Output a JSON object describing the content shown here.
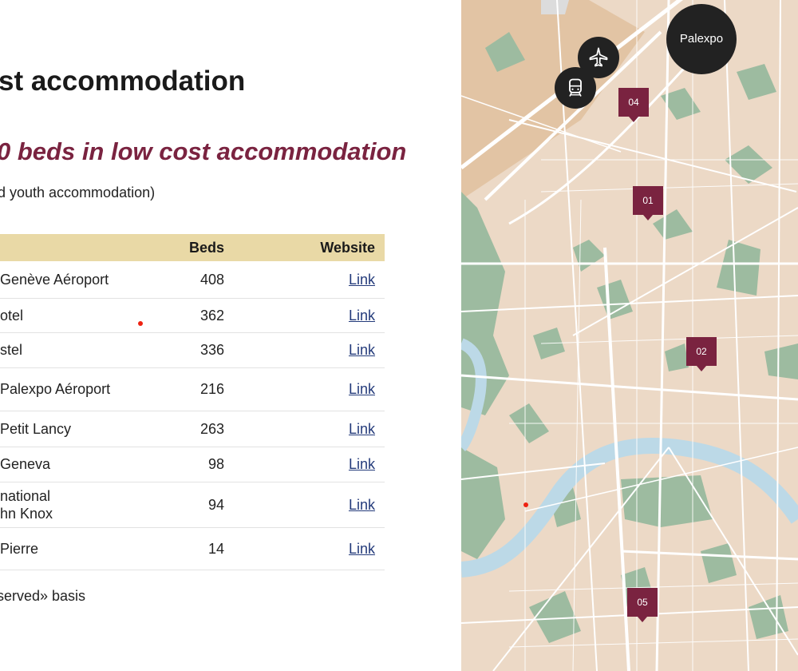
{
  "page": {
    "heading": "st accommodation",
    "subheading": "0 beds in low cost accommodation",
    "note": "d youth accommodation)",
    "footer": "served» basis"
  },
  "table": {
    "headers": {
      "name": "",
      "beds": "Beds",
      "website": "Website"
    },
    "rows": [
      {
        "name": "Genève Aéroport",
        "beds": "408",
        "link": "Link"
      },
      {
        "name": "otel",
        "beds": "362",
        "link": "Link"
      },
      {
        "name": "stel",
        "beds": "336",
        "link": "Link"
      },
      {
        "name": "Palexpo Aéroport",
        "beds": "216",
        "link": "Link"
      },
      {
        "name": "Petit Lancy",
        "beds": "263",
        "link": "Link"
      },
      {
        "name": "Geneva",
        "beds": "98",
        "link": "Link"
      },
      {
        "name": "national\nhn Knox",
        "beds": "94",
        "link": "Link"
      },
      {
        "name": "Pierre",
        "beds": "14",
        "link": "Link"
      }
    ]
  },
  "map": {
    "palexpo_label": "Palexpo",
    "pins": [
      "04",
      "01",
      "02",
      "05"
    ],
    "icons": {
      "plane": "airplane-icon",
      "train": "train-icon"
    }
  },
  "colors": {
    "accent": "#7a2340",
    "table_header": "#e9d9a6",
    "map_land": "#ecd9c6",
    "map_park": "#9dbba0",
    "map_river": "#bcd9e7",
    "map_road": "#ffffff",
    "link": "#233a7a"
  }
}
